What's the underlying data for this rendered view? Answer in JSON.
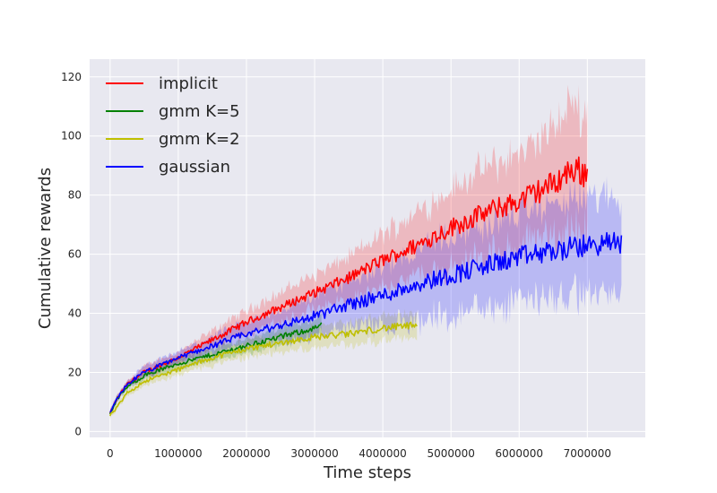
{
  "chart_data": {
    "type": "line",
    "title": "",
    "xlabel": "Time steps",
    "ylabel": "Cumulative rewards",
    "xlim": [
      -300000,
      7850000
    ],
    "ylim": [
      -2,
      126
    ],
    "xticks": [
      0,
      1000000,
      2000000,
      3000000,
      4000000,
      5000000,
      6000000,
      7000000
    ],
    "xtick_labels": [
      "0",
      "1000000",
      "2000000",
      "3000000",
      "4000000",
      "5000000",
      "6000000",
      "7000000"
    ],
    "yticks": [
      0,
      20,
      40,
      60,
      80,
      100,
      120
    ],
    "ytick_labels": [
      "0",
      "20",
      "40",
      "60",
      "80",
      "100",
      "120"
    ],
    "grid": true,
    "legend_position": "top-left",
    "background": "#e8e8f0",
    "series": [
      {
        "name": "implicit",
        "color": "#ff0000",
        "x": [
          0,
          100000,
          250000,
          500000,
          1000000,
          1500000,
          2000000,
          2500000,
          3000000,
          3500000,
          4000000,
          4500000,
          5000000,
          5500000,
          6000000,
          6500000,
          6800000,
          7000000
        ],
        "y": [
          6,
          11,
          16,
          20,
          25,
          31,
          37,
          42,
          47,
          52,
          58,
          63,
          69,
          74,
          78,
          84,
          89,
          87
        ],
        "band": [
          1,
          1,
          1,
          2,
          2,
          3,
          4,
          5,
          6,
          7,
          9,
          11,
          13,
          15,
          16,
          18,
          22,
          20
        ]
      },
      {
        "name": "gmm K=5",
        "color": "#008000",
        "x": [
          0,
          100000,
          250000,
          500000,
          1000000,
          1500000,
          2000000,
          2500000,
          3000000,
          3100000
        ],
        "y": [
          6,
          11,
          15,
          19,
          23,
          26,
          29,
          32,
          35,
          36
        ],
        "band": [
          1,
          1,
          1,
          1.5,
          2,
          2,
          2.5,
          3,
          3,
          3
        ]
      },
      {
        "name": "gmm K=2",
        "color": "#bfbf00",
        "x": [
          0,
          100000,
          250000,
          500000,
          1000000,
          1500000,
          2000000,
          2500000,
          3000000,
          3500000,
          4000000,
          4500000
        ],
        "y": [
          5.5,
          8,
          13,
          17,
          21,
          25,
          28,
          30,
          32,
          33,
          35,
          36
        ],
        "band": [
          1,
          1,
          1,
          1.5,
          2,
          2.5,
          3,
          3,
          3.5,
          4,
          4,
          4
        ]
      },
      {
        "name": "gaussian",
        "color": "#0000ff",
        "x": [
          0,
          100000,
          250000,
          500000,
          1000000,
          1500000,
          2000000,
          2500000,
          3000000,
          3500000,
          4000000,
          4500000,
          5000000,
          5500000,
          6000000,
          6500000,
          7000000,
          7500000
        ],
        "y": [
          6,
          11,
          16,
          20,
          25,
          29,
          33,
          36,
          39,
          43,
          46,
          50,
          53,
          56,
          59,
          61,
          63,
          64
        ],
        "band": [
          1,
          1,
          1,
          2,
          2,
          3,
          4,
          5,
          7,
          8,
          10,
          12,
          13,
          14,
          15,
          16,
          16,
          16
        ]
      }
    ]
  }
}
